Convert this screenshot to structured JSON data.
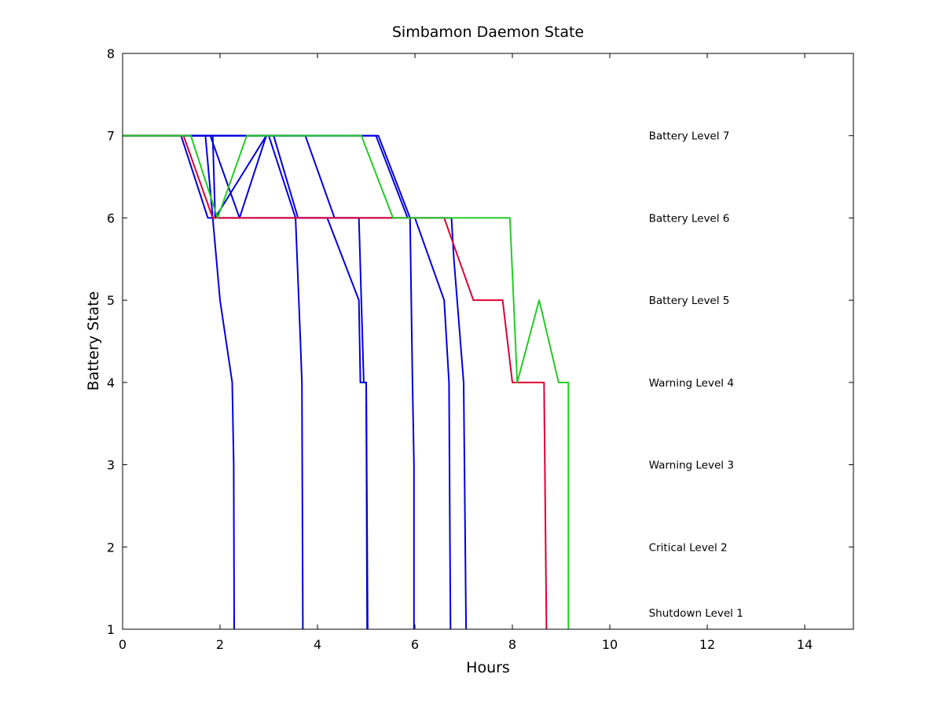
{
  "chart_data": {
    "type": "line",
    "title": "Simbamon Daemon State",
    "xlabel": "Hours",
    "ylabel": "Battery State",
    "xlim": [
      0,
      15
    ],
    "ylim": [
      1,
      8
    ],
    "xticks": [
      0,
      2,
      4,
      6,
      8,
      10,
      12,
      14
    ],
    "yticks": [
      1,
      2,
      3,
      4,
      5,
      6,
      7,
      8
    ],
    "grid": false,
    "annotations": [
      {
        "text": "Battery Level 7",
        "x": 10.8,
        "y": 7
      },
      {
        "text": "Battery Level 6",
        "x": 10.8,
        "y": 6
      },
      {
        "text": "Battery Level 5",
        "x": 10.8,
        "y": 5
      },
      {
        "text": "Warning Level 4",
        "x": 10.8,
        "y": 4
      },
      {
        "text": "Warning Level 3",
        "x": 10.8,
        "y": 3
      },
      {
        "text": "Critical Level 2",
        "x": 10.8,
        "y": 2
      },
      {
        "text": "Shutdown Level 1",
        "x": 10.8,
        "y": 1.2
      }
    ],
    "series": [
      {
        "color": "#0000dd",
        "points": [
          [
            0,
            7
          ],
          [
            1.7,
            7
          ],
          [
            1.85,
            6
          ],
          [
            2.0,
            5
          ],
          [
            2.25,
            4
          ],
          [
            2.28,
            3
          ],
          [
            2.29,
            1
          ]
        ]
      },
      {
        "color": "#0000dd",
        "points": [
          [
            0,
            7
          ],
          [
            1.2,
            7
          ],
          [
            1.75,
            6
          ],
          [
            1.9,
            6
          ],
          [
            2.95,
            7
          ],
          [
            3.0,
            7
          ],
          [
            3.55,
            6
          ],
          [
            3.65,
            4.5
          ],
          [
            3.68,
            4
          ],
          [
            3.7,
            1
          ]
        ]
      },
      {
        "color": "#0000dd",
        "points": [
          [
            0,
            7
          ],
          [
            1.8,
            7
          ],
          [
            2.4,
            6
          ],
          [
            2.95,
            7
          ],
          [
            3.75,
            7
          ],
          [
            4.35,
            6
          ],
          [
            4.85,
            6
          ],
          [
            4.9,
            5
          ],
          [
            4.95,
            4
          ],
          [
            5.0,
            4
          ],
          [
            5.02,
            1
          ]
        ]
      },
      {
        "color": "#0000dd",
        "points": [
          [
            0,
            7
          ],
          [
            3.1,
            7
          ],
          [
            3.6,
            6
          ],
          [
            4.2,
            6
          ],
          [
            4.85,
            5
          ],
          [
            4.88,
            4
          ],
          [
            5.0,
            4
          ],
          [
            5.03,
            1
          ]
        ]
      },
      {
        "color": "#0000dd",
        "points": [
          [
            0,
            7
          ],
          [
            5.25,
            7
          ],
          [
            5.9,
            6
          ],
          [
            5.95,
            4
          ],
          [
            5.98,
            3
          ],
          [
            5.98,
            1
          ]
        ]
      },
      {
        "color": "#0000dd",
        "points": [
          [
            0,
            7
          ],
          [
            5.2,
            7
          ],
          [
            5.85,
            6
          ],
          [
            6.0,
            6
          ],
          [
            6.6,
            5
          ],
          [
            6.7,
            4
          ],
          [
            6.72,
            2
          ],
          [
            6.73,
            1
          ]
        ]
      },
      {
        "color": "#0000dd",
        "points": [
          [
            0,
            7
          ],
          [
            1.85,
            7
          ],
          [
            1.9,
            6
          ],
          [
            6.75,
            6
          ],
          [
            6.8,
            5.5
          ],
          [
            7.0,
            4
          ],
          [
            7.05,
            1
          ]
        ]
      },
      {
        "color": "#dd0033",
        "points": [
          [
            0,
            7
          ],
          [
            1.25,
            7
          ],
          [
            1.85,
            6
          ],
          [
            6.6,
            6
          ],
          [
            7.2,
            5
          ],
          [
            7.8,
            5
          ],
          [
            8.0,
            4
          ],
          [
            8.65,
            4
          ],
          [
            8.7,
            1
          ]
        ]
      },
      {
        "color": "#22cc22",
        "points": [
          [
            0,
            7
          ],
          [
            1.4,
            7
          ],
          [
            1.95,
            6
          ],
          [
            2.55,
            7
          ],
          [
            4.9,
            7
          ],
          [
            5.55,
            6
          ],
          [
            7.95,
            6
          ],
          [
            8.1,
            4
          ],
          [
            8.55,
            5
          ],
          [
            8.95,
            4
          ],
          [
            9.15,
            4
          ],
          [
            9.15,
            1
          ]
        ]
      }
    ]
  }
}
